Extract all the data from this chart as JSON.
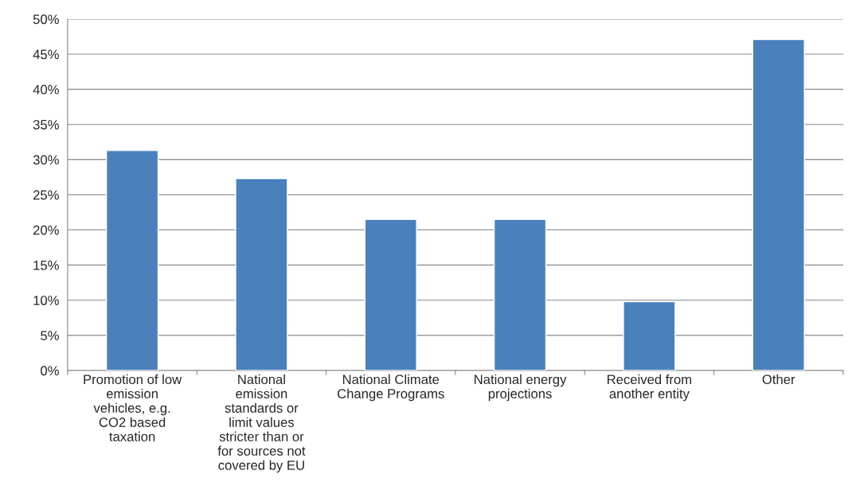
{
  "chart_data": {
    "type": "bar",
    "categories": [
      "Promotion of low emission vehicles, e.g. CO2 based taxation",
      "National emission standards or limit values stricter than or for sources not covered by EU",
      "National Climate Change Programs",
      "National energy projections",
      "Received from another entity",
      "Other"
    ],
    "values": [
      31.3,
      27.3,
      21.5,
      21.5,
      9.8,
      47.1
    ],
    "color": "#4a81bd",
    "ylim": [
      0,
      50
    ],
    "yticks": [
      {
        "value": 0,
        "label": "0%"
      },
      {
        "value": 5,
        "label": "5%"
      },
      {
        "value": 10,
        "label": "10%"
      },
      {
        "value": 15,
        "label": "15%"
      },
      {
        "value": 20,
        "label": "20%"
      },
      {
        "value": 25,
        "label": "25%"
      },
      {
        "value": 30,
        "label": "30%"
      },
      {
        "value": 35,
        "label": "35%"
      },
      {
        "value": 40,
        "label": "40%"
      },
      {
        "value": 45,
        "label": "45%"
      },
      {
        "value": 50,
        "label": "50%"
      }
    ],
    "grid": "y"
  }
}
